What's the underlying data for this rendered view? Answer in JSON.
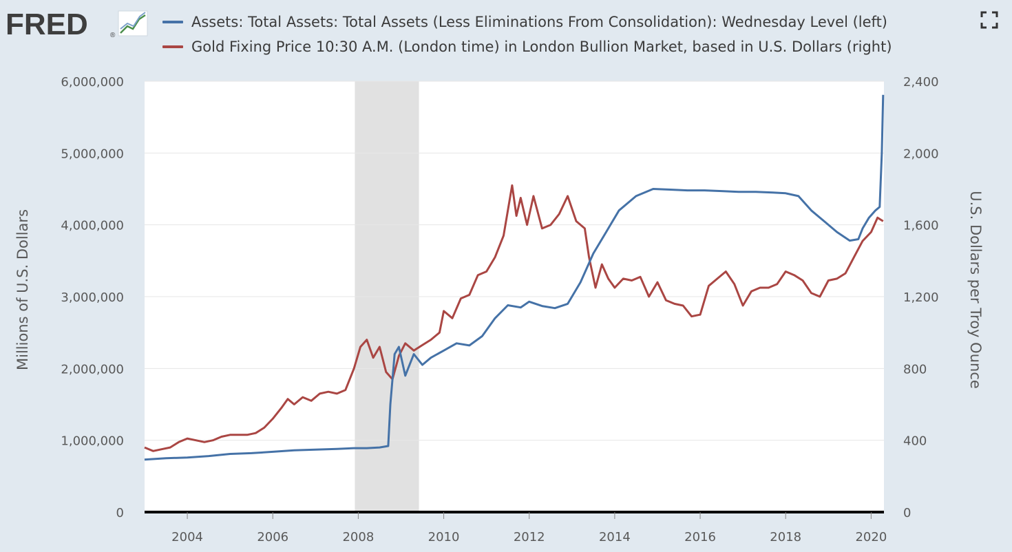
{
  "header": {
    "logo_text": "FRED",
    "logo_mark": "®",
    "fullscreen_icon": "fullscreen-icon"
  },
  "colors": {
    "assets": "#4572a7",
    "gold": "#aa4643",
    "recession": "#e1e1e1",
    "background": "#e1e9f0"
  },
  "chart_data": {
    "type": "line",
    "legend": [
      "Assets: Total Assets: Total Assets (Less Eliminations From Consolidation): Wednesday Level (left)",
      "Gold Fixing Price 10:30 A.M. (London time) in London Bullion Market, based in U.S. Dollars (right)"
    ],
    "ylabel_left": "Millions of U.S. Dollars",
    "ylabel_right": "U.S. Dollars per Troy Ounce",
    "xlim": [
      2003.0,
      2020.3
    ],
    "ylim_left": [
      0,
      6000000
    ],
    "ylim_right": [
      0,
      2400
    ],
    "x_ticks": [
      "2004",
      "2006",
      "2008",
      "2010",
      "2012",
      "2014",
      "2016",
      "2018",
      "2020"
    ],
    "y_ticks_left": [
      "0",
      "1,000,000",
      "2,000,000",
      "3,000,000",
      "4,000,000",
      "5,000,000",
      "6,000,000"
    ],
    "y_ticks_right": [
      "0",
      "400",
      "800",
      "1,200",
      "1,600",
      "2,000",
      "2,400"
    ],
    "grid": true,
    "recession": [
      2007.92,
      2009.42
    ],
    "series": [
      {
        "name": "Assets: Total Assets: Total Assets (Less Eliminations From Consolidation): Wednesday Level (left)",
        "axis": "left",
        "x": [
          2003.0,
          2003.5,
          2004.0,
          2004.5,
          2005.0,
          2005.5,
          2006.0,
          2006.5,
          2007.0,
          2007.5,
          2007.9,
          2008.2,
          2008.5,
          2008.7,
          2008.75,
          2008.85,
          2008.95,
          2009.1,
          2009.2,
          2009.3,
          2009.5,
          2009.7,
          2010.0,
          2010.3,
          2010.6,
          2010.9,
          2011.2,
          2011.5,
          2011.8,
          2012.0,
          2012.3,
          2012.6,
          2012.9,
          2013.2,
          2013.5,
          2013.8,
          2014.1,
          2014.5,
          2014.9,
          2015.3,
          2015.7,
          2016.1,
          2016.5,
          2016.9,
          2017.3,
          2017.7,
          2018.0,
          2018.3,
          2018.6,
          2018.9,
          2019.2,
          2019.5,
          2019.7,
          2019.8,
          2019.95,
          2020.1,
          2020.2,
          2020.25,
          2020.28
        ],
        "values": [
          730000,
          750000,
          760000,
          780000,
          810000,
          820000,
          840000,
          860000,
          870000,
          880000,
          890000,
          890000,
          900000,
          920000,
          1500000,
          2200000,
          2300000,
          1900000,
          2050000,
          2200000,
          2050000,
          2150000,
          2250000,
          2350000,
          2320000,
          2450000,
          2700000,
          2880000,
          2850000,
          2930000,
          2870000,
          2840000,
          2900000,
          3200000,
          3600000,
          3900000,
          4200000,
          4400000,
          4500000,
          4490000,
          4480000,
          4480000,
          4470000,
          4460000,
          4460000,
          4450000,
          4440000,
          4400000,
          4200000,
          4050000,
          3900000,
          3780000,
          3800000,
          3950000,
          4100000,
          4200000,
          4250000,
          5000000,
          5810000
        ]
      },
      {
        "name": "Gold Fixing Price 10:30 A.M. (London time) in London Bullion Market, based in U.S. Dollars (right)",
        "axis": "right",
        "x": [
          2003.0,
          2003.2,
          2003.4,
          2003.6,
          2003.8,
          2004.0,
          2004.2,
          2004.4,
          2004.6,
          2004.8,
          2005.0,
          2005.2,
          2005.4,
          2005.6,
          2005.8,
          2006.0,
          2006.2,
          2006.35,
          2006.5,
          2006.7,
          2006.9,
          2007.1,
          2007.3,
          2007.5,
          2007.7,
          2007.9,
          2008.05,
          2008.2,
          2008.35,
          2008.5,
          2008.65,
          2008.8,
          2008.95,
          2009.1,
          2009.3,
          2009.5,
          2009.7,
          2009.9,
          2010.0,
          2010.2,
          2010.4,
          2010.6,
          2010.8,
          2011.0,
          2011.2,
          2011.4,
          2011.6,
          2011.7,
          2011.8,
          2011.95,
          2012.1,
          2012.3,
          2012.5,
          2012.7,
          2012.9,
          2013.1,
          2013.3,
          2013.4,
          2013.55,
          2013.7,
          2013.85,
          2014.0,
          2014.2,
          2014.4,
          2014.6,
          2014.8,
          2015.0,
          2015.2,
          2015.4,
          2015.6,
          2015.8,
          2016.0,
          2016.2,
          2016.4,
          2016.6,
          2016.8,
          2017.0,
          2017.2,
          2017.4,
          2017.6,
          2017.8,
          2018.0,
          2018.2,
          2018.4,
          2018.6,
          2018.8,
          2019.0,
          2019.2,
          2019.4,
          2019.6,
          2019.8,
          2020.0,
          2020.15,
          2020.28
        ],
        "values": [
          360,
          340,
          350,
          360,
          390,
          410,
          400,
          390,
          400,
          420,
          430,
          430,
          430,
          440,
          470,
          520,
          580,
          630,
          600,
          640,
          620,
          660,
          670,
          660,
          680,
          800,
          920,
          960,
          860,
          920,
          780,
          740,
          870,
          940,
          900,
          930,
          960,
          1000,
          1120,
          1080,
          1190,
          1210,
          1320,
          1340,
          1420,
          1540,
          1820,
          1650,
          1750,
          1600,
          1760,
          1580,
          1600,
          1660,
          1760,
          1620,
          1580,
          1420,
          1250,
          1380,
          1300,
          1250,
          1300,
          1290,
          1310,
          1200,
          1280,
          1180,
          1160,
          1150,
          1090,
          1100,
          1260,
          1300,
          1340,
          1270,
          1150,
          1230,
          1250,
          1250,
          1270,
          1340,
          1320,
          1290,
          1220,
          1200,
          1290,
          1300,
          1330,
          1420,
          1510,
          1560,
          1640,
          1620
        ]
      }
    ]
  }
}
